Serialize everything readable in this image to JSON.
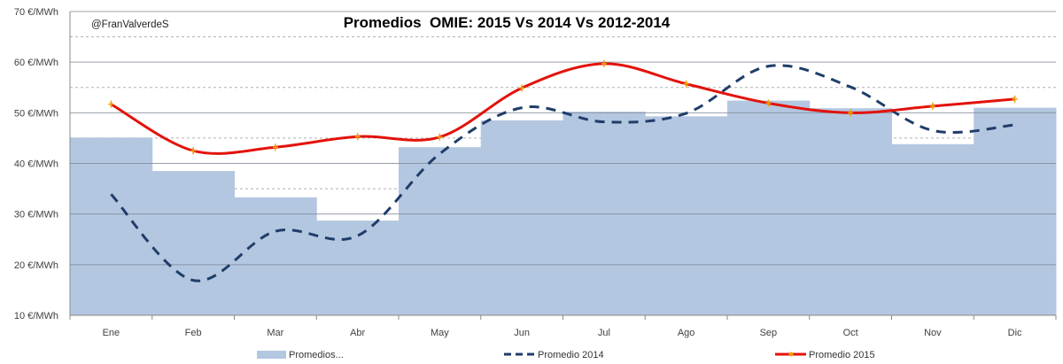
{
  "chart_data": {
    "type": "line",
    "title": "Promedios  OMIE: 2015 Vs 2014 Vs 2012-2014",
    "credit": "@FranValverdeS",
    "xlabel": "",
    "ylabel": "",
    "ylim": [
      10,
      70
    ],
    "y_ticks": [
      "10 €/MWh",
      "20 €/MWh",
      "30 €/MWh",
      "40 €/MWh",
      "50 €/MWh",
      "60 €/MWh",
      "70 €/MWh"
    ],
    "y_tick_values": [
      10,
      20,
      30,
      40,
      50,
      60,
      70
    ],
    "grid": true,
    "legend_position": "bottom",
    "categories": [
      "Ene",
      "Feb",
      "Mar",
      "Abr",
      "May",
      "Jun",
      "Jul",
      "Ago",
      "Sep",
      "Oct",
      "Nov",
      "Dic"
    ],
    "series": [
      {
        "name": "Promedios...",
        "kind": "step-area",
        "color": "#b4c7e1",
        "values": [
          45.1,
          38.5,
          33.3,
          28.7,
          43.2,
          48.5,
          50.2,
          49.3,
          52.4,
          50.9,
          43.8,
          51.0
        ]
      },
      {
        "name": "Promedio 2014",
        "kind": "dashed-line",
        "color": "#1f3d68",
        "values": [
          33.9,
          16.9,
          26.6,
          25.7,
          41.9,
          51.0,
          48.2,
          49.9,
          59.2,
          55.1,
          46.5,
          47.6
        ]
      },
      {
        "name": "Promedio 2015",
        "kind": "line-marker",
        "color": "#e3120b",
        "values": [
          51.7,
          42.5,
          43.2,
          45.3,
          45.2,
          54.9,
          59.7,
          55.7,
          51.9,
          50.0,
          51.3,
          52.7
        ]
      }
    ]
  }
}
